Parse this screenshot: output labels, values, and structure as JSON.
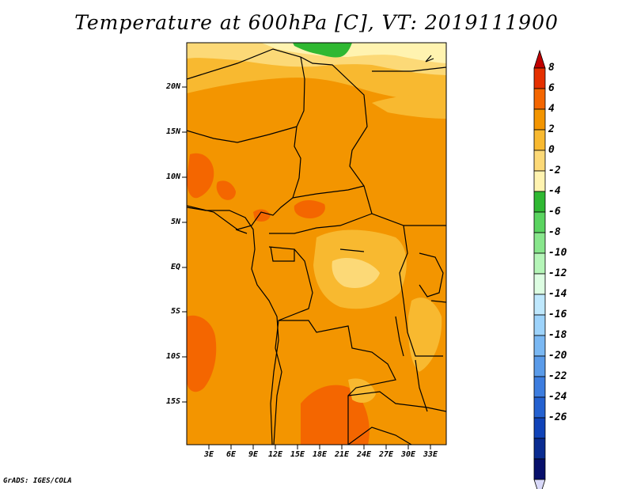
{
  "title": "Temperature at 600hPa [C], VT: 2019111900",
  "credit": "GrADS: IGES/COLA",
  "map": {
    "lat_labels": [
      "20N",
      "15N",
      "10N",
      "5N",
      "EQ",
      "5S",
      "10S",
      "15S"
    ],
    "lon_labels": [
      "3E",
      "6E",
      "9E",
      "12E",
      "15E",
      "18E",
      "21E",
      "24E",
      "27E",
      "30E",
      "33E"
    ]
  },
  "colorbar": {
    "labels": [
      "8",
      "6",
      "4",
      "2",
      "0",
      "-2",
      "-4",
      "-6",
      "-8",
      "-10",
      "-12",
      "-14",
      "-16",
      "-18",
      "-20",
      "-22",
      "-24",
      "-26"
    ],
    "colors": [
      "#c00000",
      "#e53000",
      "#f46600",
      "#f39500",
      "#f8b930",
      "#fcd977",
      "#fff3b0",
      "#2fb832",
      "#5ad460",
      "#88e68c",
      "#b5f5b8",
      "#ddfde2",
      "#bfe8fd",
      "#9dd3fb",
      "#7ab8f3",
      "#5a9be9",
      "#3d7ddf",
      "#2461d0",
      "#1043b8",
      "#0a2c91",
      "#08106b",
      "#d9d9f9"
    ]
  },
  "colors": {
    "base": "#f39500",
    "warm_patch": "#f46600",
    "cool_band": "#f8b930",
    "pale": "#fcd977",
    "palest": "#fff3b0",
    "green": "#2fb832"
  }
}
